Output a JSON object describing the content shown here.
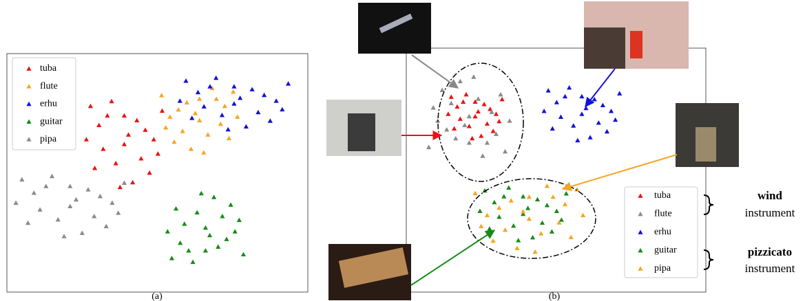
{
  "chart_data": [
    {
      "type": "scatter",
      "caption": "(a)",
      "xlim": [
        0,
        100
      ],
      "ylim": [
        0,
        100
      ],
      "series": [
        {
          "name": "tuba",
          "color": "#ee1111",
          "x": [
            39,
            46,
            33.4,
            50.2,
            29.2,
            41.8,
            34.8,
            51.6,
            26.4,
            43.2,
            32,
            47.4,
            36.2,
            40.4,
            27.8,
            44.6,
            37.6,
            48.8,
            30.6,
            39
          ],
          "values": [
            62,
            68,
            74,
            58,
            52,
            46,
            80,
            76,
            64,
            72,
            60,
            50,
            54,
            66,
            78,
            56,
            44,
            64,
            70,
            74
          ]
        },
        {
          "name": "flute",
          "color": "#f5a623",
          "x": [
            64,
            57,
            69.6,
            52.8,
            73.8,
            61.2,
            68.2,
            51.4,
            76.6,
            59.8,
            71,
            55.6,
            66.8,
            62.6,
            75.2,
            58.4,
            65.4,
            54.2,
            72.4,
            64
          ],
          "values": [
            72,
            76.5,
            81,
            69,
            64.5,
            60,
            85.5,
            82.5,
            73.5,
            79.5,
            70.5,
            63,
            66,
            75,
            84,
            67.5,
            58.5,
            73.5,
            78,
            81
          ]
        },
        {
          "name": "erhu",
          "color": "#1111dd",
          "x": [
            75.5,
            85.5,
            67.5,
            91.5,
            61.5,
            79.5,
            69.5,
            93.5,
            57.5,
            81.5,
            65.5,
            87.5,
            71.5,
            77.5,
            59.5,
            83.5,
            73.5,
            89.5,
            63.5,
            75.5
          ],
          "values": [
            79,
            82.6,
            86.2,
            76.6,
            73,
            69.4,
            89.8,
            87.4,
            80.2,
            85,
            77.8,
            71.8,
            74.2,
            81.4,
            88.6,
            75.4,
            68.2,
            80.2,
            83.8,
            86.2
          ]
        },
        {
          "name": "guitar",
          "color": "#168c16",
          "x": [
            66,
            73,
            60.4,
            77.2,
            56.2,
            68.8,
            61.8,
            78.6,
            53.4,
            70.2,
            59,
            74.4,
            63.2,
            67.4,
            54.8,
            71.6,
            64.6,
            75.8,
            57.6,
            66
          ],
          "values": [
            27,
            22.2,
            17.4,
            30.2,
            35,
            39.8,
            12.6,
            15.8,
            25.4,
            19,
            28.6,
            36.6,
            33.4,
            23.8,
            14.2,
            31.8,
            41.4,
            25.4,
            20.6,
            17.4
          ]
        },
        {
          "name": "pipa",
          "color": "#8a8a8a",
          "x": [
            21,
            31,
            13,
            37,
            7,
            25,
            15,
            39,
            3,
            27,
            11,
            33,
            17,
            23,
            5,
            29,
            19,
            35,
            9,
            21
          ],
          "values": [
            36,
            40.2,
            44.4,
            33.2,
            29,
            24.8,
            48.6,
            45.8,
            37.4,
            43,
            34.6,
            27.6,
            30.4,
            38.8,
            47.2,
            31.8,
            23.4,
            37.4,
            41.6,
            44.4
          ]
        }
      ]
    },
    {
      "type": "scatter",
      "caption": "(b)",
      "xlim": [
        0,
        100
      ],
      "ylim": [
        0,
        100
      ],
      "annotations": [
        "wind",
        "instrument",
        "pizzicato",
        "instrument"
      ],
      "series": [
        {
          "name": "tuba",
          "color": "#ee1111",
          "x": [
            23,
            28,
            19,
            31,
            16,
            25,
            20,
            32,
            14,
            26,
            18,
            29,
            21,
            24,
            15,
            27,
            22,
            30,
            17,
            23
          ],
          "values": [
            72,
            75,
            78,
            70,
            67,
            64,
            81,
            79,
            73,
            77,
            71,
            66,
            68,
            74,
            80,
            69,
            63,
            73,
            76,
            78
          ]
        },
        {
          "name": "flute",
          "color": "#8a8a8a",
          "x": [
            21,
            13.5,
            27,
            9,
            31.5,
            18,
            25.5,
            7.5,
            34.5,
            16.5,
            28.5,
            12,
            24,
            19.5,
            33,
            15,
            22.5,
            10.5,
            30,
            21
          ],
          "values": [
            72,
            66.6,
            61.2,
            75.6,
            81,
            86.4,
            55.8,
            59.4,
            70.2,
            63,
            73.8,
            82.8,
            79.2,
            68.4,
            57.6,
            77.4,
            88.2,
            70.2,
            64.8,
            61.2
          ]
        },
        {
          "name": "erhu",
          "color": "#1111dd",
          "x": [
            58.6,
            65.6,
            53,
            69.8,
            48.8,
            61.4,
            54.4,
            71.2,
            46,
            62.8,
            51.6,
            67,
            55.8,
            60,
            47.4,
            64.2,
            57.2,
            68.4,
            50.2,
            58.6
          ],
          "values": [
            73,
            76.6,
            80.2,
            70.6,
            67,
            63.4,
            83.8,
            81.4,
            74.2,
            79,
            71.8,
            65.8,
            68.2,
            75.4,
            82.6,
            69.4,
            62.2,
            74.2,
            77.8,
            80.2
          ]
        },
        {
          "name": "guitar",
          "color": "#168c16",
          "x": [
            39,
            47,
            32.6,
            51.8,
            27.8,
            42.2,
            34.2,
            53.4,
            24.6,
            43.8,
            31,
            48.6,
            35.8,
            40.6,
            26.2,
            45.4,
            37.4,
            50.2,
            29.4,
            39
          ],
          "values": [
            32,
            35.6,
            39.2,
            29.6,
            26,
            22.4,
            42.8,
            40.4,
            33.2,
            38,
            30.8,
            24.8,
            27.2,
            34.4,
            41.6,
            28.4,
            21.2,
            33.2,
            36.8,
            39.2
          ]
        },
        {
          "name": "pipa",
          "color": "#f5a623",
          "x": [
            41,
            31,
            49,
            25,
            55,
            37,
            47,
            23,
            59,
            35,
            51,
            29,
            45,
            39,
            57,
            33,
            43,
            27,
            53,
            41
          ],
          "values": [
            30,
            34.5,
            39,
            27,
            22.5,
            18,
            43.5,
            40.5,
            31.5,
            37.5,
            28.5,
            21,
            24,
            33,
            42,
            25.5,
            16.5,
            31.5,
            36,
            39
          ]
        }
      ]
    }
  ]
}
